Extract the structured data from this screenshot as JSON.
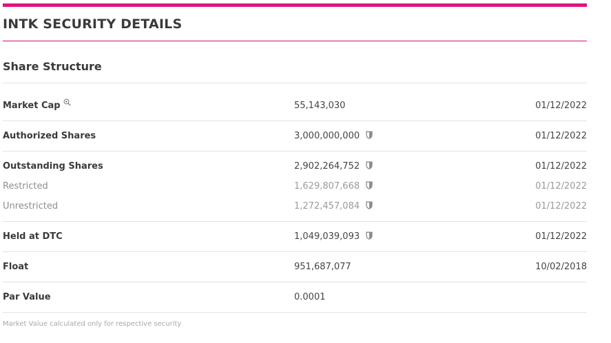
{
  "page": {
    "title": "INTK SECURITY DETAILS",
    "accent_color": "#e0137f"
  },
  "share_structure": {
    "title": "Share Structure",
    "groups": [
      {
        "rows": [
          {
            "label": "Market Cap",
            "value": "55,143,030",
            "date": "01/12/2022",
            "icon": "zoom-icon"
          }
        ]
      },
      {
        "rows": [
          {
            "label": "Authorized Shares",
            "value": "3,000,000,000",
            "date": "01/12/2022",
            "icon": "shield-icon"
          }
        ]
      },
      {
        "rows": [
          {
            "label": "Outstanding Shares",
            "value": "2,902,264,752",
            "date": "01/12/2022",
            "icon": "shield-icon"
          },
          {
            "label": "Restricted",
            "value": "1,629,807,668",
            "date": "01/12/2022",
            "icon": "shield-icon"
          },
          {
            "label": "Unrestricted",
            "value": "1,272,457,084",
            "date": "01/12/2022",
            "icon": "shield-icon"
          }
        ]
      },
      {
        "rows": [
          {
            "label": "Held at DTC",
            "value": "1,049,039,093",
            "date": "01/12/2022",
            "icon": "shield-icon"
          }
        ]
      },
      {
        "rows": [
          {
            "label": "Float",
            "value": "951,687,077",
            "date": "10/02/2018"
          }
        ]
      },
      {
        "rows": [
          {
            "label": "Par Value",
            "value": "0.0001",
            "date": ""
          }
        ]
      }
    ],
    "footnote": "Market Value calculated only for respective security"
  }
}
